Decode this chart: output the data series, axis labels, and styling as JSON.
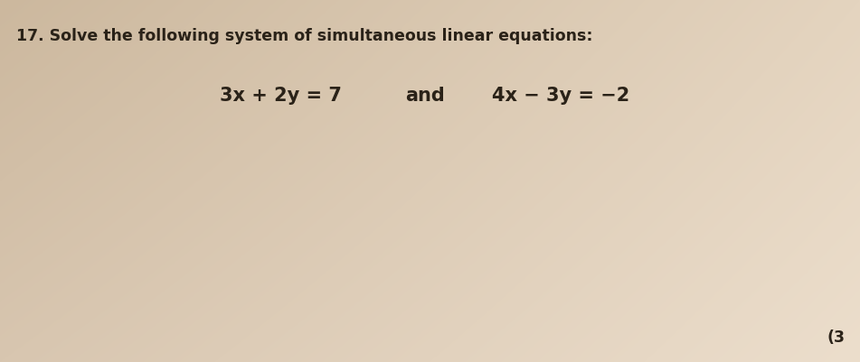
{
  "background_color": "#e2d0bc",
  "background_color_right": "#ded0be",
  "question_number": "17.",
  "question_text": "Solve the following system of simultaneous linear equations:",
  "equation1": "3x + 2y = 7",
  "connector": "and",
  "equation2": "4x − 3y = −2",
  "mark": "(3",
  "header_fontsize": 12.5,
  "equation_fontsize": 15,
  "mark_fontsize": 12.5,
  "text_color": "#2a2218"
}
